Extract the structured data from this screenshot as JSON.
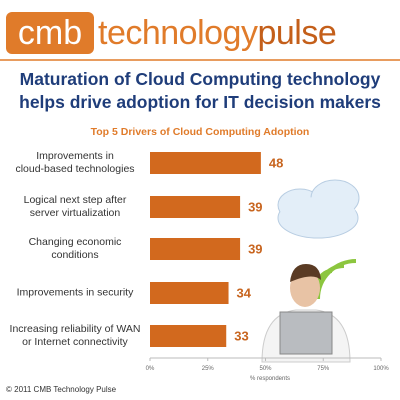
{
  "brand": {
    "cmb": "cmb",
    "technology": "technology",
    "pulse": "pulse"
  },
  "chart_data": {
    "type": "barh",
    "title": "Maturation of Cloud Computing technology\nhelps drive adoption for IT decision makers",
    "subtitle": "Top 5 Drivers of Cloud Computing Adoption",
    "categories": [
      "Improvements in\ncloud-based technologies",
      "Logical next step after\nserver virtualization",
      "Changing economic\nconditions",
      "Improvements in security",
      "Increasing reliability of WAN\nor Internet connectivity"
    ],
    "values": [
      48,
      39,
      39,
      34,
      33
    ],
    "color": "#d2691e",
    "xlim": [
      0,
      100
    ],
    "xticks": [
      {
        "value": 0,
        "label": "0%"
      },
      {
        "value": 25,
        "label": "25%"
      },
      {
        "value": 50,
        "label": "50%"
      },
      {
        "value": 75,
        "label": "75%"
      },
      {
        "value": 100,
        "label": "100%"
      }
    ],
    "xlabel": "% respondents"
  },
  "footer": "© 2011 CMB Technology Pulse"
}
